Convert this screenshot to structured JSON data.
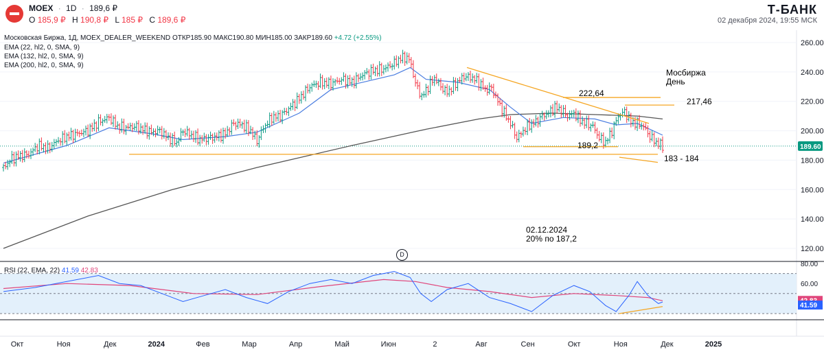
{
  "header": {
    "symbol": "MOEX",
    "interval": "1D",
    "price": "189,6 ₽",
    "open_label": "O",
    "open": "185,9 ₽",
    "high_label": "H",
    "high": "190,8 ₽",
    "low_label": "L",
    "low": "185 ₽",
    "close_label": "C",
    "close": "189,6 ₽",
    "brand": "Т-БАНК",
    "timestamp": "02 декабря 2024, 19:55 МСК"
  },
  "legend": {
    "line1_prefix": "Московская Биржа, 1Д, MOEX_DEALER_WEEKEND",
    "line1_stats": "ОТКР185.90 МАКС190.80 МИН185.00 ЗАКР189.60",
    "line1_change": "+4.72 (+2.55%)",
    "ema1": "EMA (22, hl2, 0, SMA, 9)",
    "ema2": "EMA (132, hl2, 0, SMA, 9)",
    "ema3": "EMA (200, hl2, 0, SMA, 9)",
    "rsi": "RSI (22, EMA, 22)",
    "rsi_v1": "41.59",
    "rsi_v2": "42.83"
  },
  "annotations": {
    "title1": "Мосбиржа",
    "title2": "День",
    "lvl_222": "222,64",
    "lvl_217": "217,46",
    "lvl_189": "189,2",
    "lvl_183": "183 - 184",
    "date_note": "02.12.2024",
    "note2": "20% по 187,2",
    "d_badge": "D"
  },
  "colors": {
    "up": "#089981",
    "down": "#f23645",
    "ema22": "#4a7de0",
    "ema200": "#555555",
    "level": "#f5a623",
    "rsi": "#2962ff",
    "rsi_ma": "#e0457b",
    "rsi_band": "#e3f0fb"
  },
  "chart_data": {
    "type": "candlestick",
    "price_axis": {
      "ticks": [
        120,
        140,
        160,
        180,
        200,
        220,
        240,
        260
      ],
      "range": [
        110,
        266
      ],
      "last_price": "189.60"
    },
    "time_axis": {
      "labels": [
        "Окт",
        "Ноя",
        "Дек",
        "2024",
        "Фев",
        "Мар",
        "Апр",
        "Май",
        "Июн",
        "2",
        "Авг",
        "Сен",
        "Окт",
        "Ноя",
        "Дек",
        "2025"
      ]
    },
    "close_path": [
      [
        0,
        175
      ],
      [
        8,
        181
      ],
      [
        16,
        183
      ],
      [
        24,
        184
      ],
      [
        33,
        190
      ],
      [
        42,
        188
      ],
      [
        51,
        193
      ],
      [
        60,
        196
      ],
      [
        70,
        198
      ],
      [
        80,
        200
      ],
      [
        90,
        206
      ],
      [
        100,
        209
      ],
      [
        108,
        203
      ],
      [
        116,
        202
      ],
      [
        124,
        203
      ],
      [
        132,
        201
      ],
      [
        140,
        199
      ],
      [
        148,
        200
      ],
      [
        156,
        195
      ],
      [
        164,
        192
      ],
      [
        170,
        200
      ],
      [
        178,
        197
      ],
      [
        186,
        194
      ],
      [
        194,
        195
      ],
      [
        202,
        196
      ],
      [
        210,
        198
      ],
      [
        218,
        205
      ],
      [
        226,
        204
      ],
      [
        234,
        200
      ],
      [
        240,
        193
      ],
      [
        246,
        202
      ],
      [
        254,
        209
      ],
      [
        262,
        210
      ],
      [
        270,
        215
      ],
      [
        280,
        222
      ],
      [
        290,
        230
      ],
      [
        300,
        233
      ],
      [
        310,
        232
      ],
      [
        320,
        235
      ],
      [
        330,
        233
      ],
      [
        340,
        238
      ],
      [
        350,
        241
      ],
      [
        360,
        242
      ],
      [
        370,
        246
      ],
      [
        375,
        249
      ],
      [
        380,
        250
      ],
      [
        385,
        248
      ],
      [
        390,
        232
      ],
      [
        396,
        223
      ],
      [
        402,
        230
      ],
      [
        408,
        236
      ],
      [
        414,
        230
      ],
      [
        420,
        226
      ],
      [
        428,
        232
      ],
      [
        436,
        237
      ],
      [
        444,
        236
      ],
      [
        450,
        233
      ],
      [
        456,
        228
      ],
      [
        462,
        229
      ],
      [
        468,
        220
      ],
      [
        474,
        212
      ],
      [
        480,
        205
      ],
      [
        486,
        195
      ],
      [
        492,
        200
      ],
      [
        498,
        204
      ],
      [
        504,
        206
      ],
      [
        510,
        210
      ],
      [
        516,
        212
      ],
      [
        522,
        216
      ],
      [
        528,
        214
      ],
      [
        534,
        210
      ],
      [
        540,
        212
      ],
      [
        546,
        207
      ],
      [
        552,
        205
      ],
      [
        558,
        203
      ],
      [
        564,
        195
      ],
      [
        570,
        192
      ],
      [
        576,
        200
      ],
      [
        582,
        210
      ],
      [
        588,
        213
      ],
      [
        594,
        206
      ],
      [
        600,
        205
      ],
      [
        606,
        203
      ],
      [
        612,
        196
      ],
      [
        618,
        192
      ],
      [
        624,
        189.6
      ]
    ],
    "ema22": [
      [
        0,
        178
      ],
      [
        60,
        190
      ],
      [
        100,
        202
      ],
      [
        140,
        198
      ],
      [
        170,
        194
      ],
      [
        210,
        196
      ],
      [
        240,
        199
      ],
      [
        280,
        212
      ],
      [
        310,
        228
      ],
      [
        340,
        233
      ],
      [
        370,
        238
      ],
      [
        385,
        243
      ],
      [
        400,
        235
      ],
      [
        430,
        233
      ],
      [
        460,
        228
      ],
      [
        480,
        216
      ],
      [
        500,
        205
      ],
      [
        530,
        209
      ],
      [
        560,
        208
      ],
      [
        580,
        204
      ],
      [
        600,
        205
      ],
      [
        624,
        197
      ]
    ],
    "ema200": [
      [
        0,
        120
      ],
      [
        80,
        142
      ],
      [
        160,
        160
      ],
      [
        240,
        175
      ],
      [
        330,
        190
      ],
      [
        400,
        201
      ],
      [
        450,
        208
      ],
      [
        480,
        211
      ],
      [
        520,
        212
      ],
      [
        560,
        211
      ],
      [
        600,
        210
      ],
      [
        624,
        208
      ]
    ],
    "levels": [
      {
        "label": "222,64",
        "value": 222.64
      },
      {
        "label": "217,46",
        "value": 217.46
      },
      {
        "label": "189,2",
        "value": 189.2
      },
      {
        "label": "183 - 184",
        "value": 184
      }
    ],
    "rsi": {
      "ticks": [
        80.0,
        60.0
      ],
      "band": [
        70,
        30
      ],
      "values": [
        [
          0,
          52
        ],
        [
          30,
          56
        ],
        [
          60,
          62
        ],
        [
          90,
          68
        ],
        [
          110,
          60
        ],
        [
          130,
          58
        ],
        [
          150,
          50
        ],
        [
          170,
          42
        ],
        [
          190,
          48
        ],
        [
          210,
          54
        ],
        [
          230,
          46
        ],
        [
          250,
          40
        ],
        [
          270,
          52
        ],
        [
          290,
          60
        ],
        [
          310,
          64
        ],
        [
          330,
          60
        ],
        [
          350,
          68
        ],
        [
          370,
          72
        ],
        [
          385,
          66
        ],
        [
          395,
          50
        ],
        [
          405,
          42
        ],
        [
          420,
          54
        ],
        [
          440,
          60
        ],
        [
          460,
          46
        ],
        [
          480,
          40
        ],
        [
          500,
          32
        ],
        [
          520,
          48
        ],
        [
          540,
          58
        ],
        [
          555,
          52
        ],
        [
          570,
          38
        ],
        [
          580,
          32
        ],
        [
          592,
          48
        ],
        [
          600,
          62
        ],
        [
          610,
          48
        ],
        [
          620,
          40
        ],
        [
          624,
          41.59
        ]
      ],
      "ma": [
        [
          0,
          55
        ],
        [
          60,
          60
        ],
        [
          120,
          58
        ],
        [
          180,
          50
        ],
        [
          240,
          49
        ],
        [
          300,
          57
        ],
        [
          360,
          64
        ],
        [
          390,
          62
        ],
        [
          420,
          56
        ],
        [
          460,
          52
        ],
        [
          500,
          46
        ],
        [
          540,
          50
        ],
        [
          580,
          48
        ],
        [
          610,
          46
        ],
        [
          624,
          42.83
        ]
      ]
    }
  }
}
